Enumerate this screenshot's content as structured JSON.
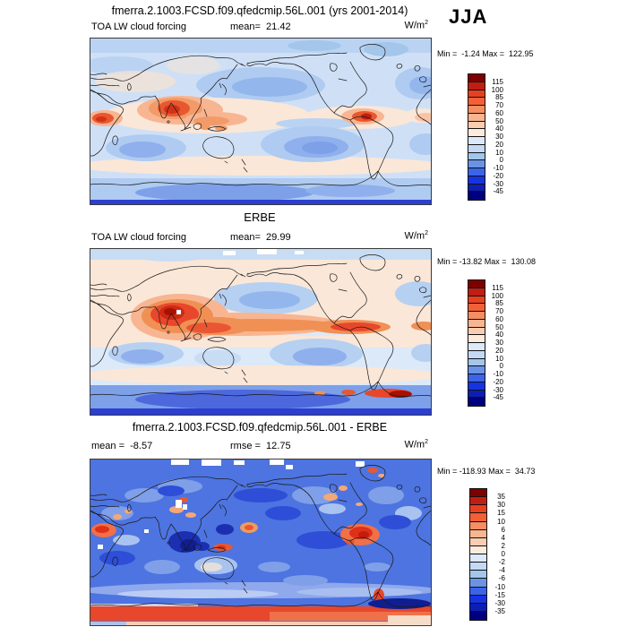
{
  "figure": {
    "title": "fmerra.2.1003.FCSD.f09.qfedcmip.56L.001 (yrs 2001-2014)",
    "season": "JJA"
  },
  "units": {
    "base": "W/m",
    "exp": "2"
  },
  "palette": [
    "#7d0000",
    "#c21d12",
    "#e8401f",
    "#f26038",
    "#f58e62",
    "#f8b591",
    "#facdb0",
    "#fcebdc",
    "#dce9f8",
    "#c3d9f5",
    "#a3c6ea",
    "#6a93e6",
    "#3c64e8",
    "#1733e0",
    "#0d1eb4",
    "#00007e"
  ],
  "panels": [
    {
      "title": "",
      "variable": "TOA LW cloud forcing",
      "mean": "mean=  21.42",
      "minmax": "Min =  -1.24 Max =  122.95"
    },
    {
      "title": "ERBE",
      "variable": "TOA LW cloud forcing",
      "mean": "mean=  29.99",
      "minmax": "Min = -13.82 Max =  130.08"
    },
    {
      "title": "fmerra.2.1003.FCSD.f09.qfedcmip.56L.001 - ERBE",
      "mean": "mean =  -8.57",
      "rmse": "rmse =  12.75",
      "minmax": "Min = -118.93 Max =  34.73"
    }
  ],
  "colorbars": [
    {
      "ticks": [
        "115",
        "100",
        "85",
        "70",
        "60",
        "50",
        "40",
        "30",
        "20",
        "10",
        "0",
        "-10",
        "-20",
        "-30",
        "-45"
      ]
    },
    {
      "ticks": [
        "115",
        "100",
        "85",
        "70",
        "60",
        "50",
        "40",
        "30",
        "20",
        "10",
        "0",
        "-10",
        "-20",
        "-30",
        "-45"
      ]
    },
    {
      "ticks": [
        "35",
        "30",
        "15",
        "10",
        "6",
        "4",
        "2",
        "0",
        "-2",
        "-4",
        "-6",
        "-10",
        "-15",
        "-30",
        "-35"
      ]
    }
  ],
  "chart_data": [
    {
      "type": "heatmap",
      "title": "fmerra.2.1003.FCSD.f09.qfedcmip.56L.001 (yrs 2001-2014)",
      "variable": "TOA LW cloud forcing",
      "season": "JJA",
      "units": "W/m2",
      "mean": 21.42,
      "min": -1.24,
      "max": 122.95,
      "contour_levels": [
        -45,
        -30,
        -20,
        -10,
        0,
        10,
        20,
        30,
        40,
        50,
        60,
        70,
        85,
        100,
        115
      ],
      "projection": "global cylindrical lat-lon, Pacific(180E)-centered",
      "legend_position": "right",
      "notes": "Model climatology: red maxima over India/SE Asia, central Africa, Colombia; blue over subtropical oceans and poles"
    },
    {
      "type": "heatmap",
      "title": "ERBE",
      "variable": "TOA LW cloud forcing",
      "season": "JJA",
      "units": "W/m2",
      "mean": 29.99,
      "min": -13.82,
      "max": 130.08,
      "contour_levels": [
        -45,
        -30,
        -20,
        -10,
        0,
        10,
        20,
        30,
        40,
        50,
        60,
        70,
        85,
        100,
        115
      ],
      "projection": "global cylindrical lat-lon, Pacific(180E)-centered",
      "legend_position": "right",
      "notes": "Observations: strong red maximum over South Asia and ITCZ band; deep blue over Southern Ocean/Antarctica with red spots at Antarctic coast"
    },
    {
      "type": "heatmap",
      "title": "fmerra.2.1003.FCSD.f09.qfedcmip.56L.001 - ERBE",
      "season": "JJA",
      "units": "W/m2",
      "mean": -8.57,
      "rmse": 12.75,
      "min": -118.93,
      "max": 34.73,
      "contour_levels": [
        -35,
        -30,
        -15,
        -10,
        -6,
        -4,
        -2,
        0,
        2,
        4,
        6,
        10,
        15,
        30,
        35
      ],
      "projection": "global cylindrical lat-lon, Pacific(180E)-centered",
      "legend_position": "right",
      "notes": "Difference map: predominantly negative (blue) with positive (red) band along Antarctic coast and over Colombia/Venezuela; white = missing data"
    }
  ]
}
